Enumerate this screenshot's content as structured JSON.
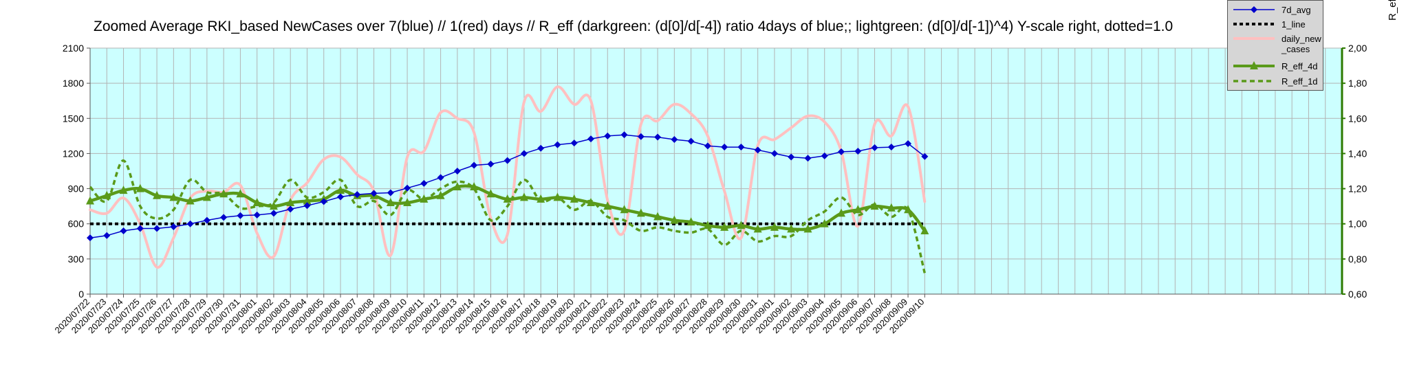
{
  "chart_data": {
    "type": "line",
    "title": "Zoomed Average RKI_based NewCases over 7(blue) // 1(red) days //  R_eff (darkgreen: (d[0]/d[-4]) ratio 4days of blue;; lightgreen: (d[0]/d[-1])^4) Y-scale right, dotted=1.0",
    "right_axis_label": "R_eff",
    "x": [
      "2020/07/22",
      "2020/07/23",
      "2020/07/24",
      "2020/07/25",
      "2020/07/26",
      "2020/07/27",
      "2020/07/28",
      "2020/07/29",
      "2020/07/30",
      "2020/07/31",
      "2020/08/01",
      "2020/08/02",
      "2020/08/03",
      "2020/08/04",
      "2020/08/05",
      "2020/08/06",
      "2020/08/07",
      "2020/08/08",
      "2020/08/09",
      "2020/08/10",
      "2020/08/11",
      "2020/08/12",
      "2020/08/13",
      "2020/08/14",
      "2020/08/15",
      "2020/08/16",
      "2020/08/17",
      "2020/08/18",
      "2020/08/19",
      "2020/08/20",
      "2020/08/21",
      "2020/08/22",
      "2020/08/23",
      "2020/08/24",
      "2020/08/25",
      "2020/08/26",
      "2020/08/27",
      "2020/08/28",
      "2020/08/29",
      "2020/08/30",
      "2020/08/31",
      "2020/09/01",
      "2020/09/02",
      "2020/09/03",
      "2020/09/04",
      "2020/09/05",
      "2020/09/06",
      "2020/09/07",
      "2020/09/08",
      "2020/09/09",
      "2020/09/10"
    ],
    "left_axis": {
      "ylim": [
        0,
        2100
      ],
      "ticks": [
        "0",
        "300",
        "600",
        "900",
        "1200",
        "1500",
        "1800",
        "2100"
      ]
    },
    "right_axis": {
      "ylim": [
        0.6,
        2.0
      ],
      "ticks": [
        "0,60",
        "0,80",
        "1,00",
        "1,20",
        "1,40",
        "1,60",
        "1,80",
        "2,00"
      ]
    },
    "x_slots": 75,
    "grid": true,
    "legend_position": "top-right",
    "series": [
      {
        "name": "7d_avg",
        "axis": "left",
        "color": "#0000cc",
        "marker": "diamond",
        "values": [
          480,
          500,
          540,
          560,
          560,
          575,
          600,
          630,
          655,
          670,
          675,
          690,
          725,
          755,
          790,
          830,
          850,
          860,
          865,
          905,
          945,
          995,
          1050,
          1100,
          1110,
          1140,
          1200,
          1245,
          1275,
          1290,
          1325,
          1350,
          1360,
          1345,
          1340,
          1320,
          1305,
          1265,
          1255,
          1255,
          1230,
          1200,
          1170,
          1160,
          1180,
          1215,
          1220,
          1250,
          1255,
          1285,
          1175
        ]
      },
      {
        "name": "1_line",
        "axis": "right",
        "color": "#000000",
        "dash": "dotted",
        "values": [
          1,
          1,
          1,
          1,
          1,
          1,
          1,
          1,
          1,
          1,
          1,
          1,
          1,
          1,
          1,
          1,
          1,
          1,
          1,
          1,
          1,
          1,
          1,
          1,
          1,
          1,
          1,
          1,
          1,
          1,
          1,
          1,
          1,
          1,
          1,
          1,
          1,
          1,
          1,
          1,
          1,
          1,
          1,
          1,
          1,
          1,
          1,
          1,
          1,
          1,
          1
        ]
      },
      {
        "name": "daily_new\n_cases",
        "axis": "left",
        "color": "#ffc0c0",
        "values": [
          720,
          690,
          820,
          600,
          230,
          480,
          820,
          880,
          870,
          930,
          520,
          320,
          800,
          950,
          1150,
          1170,
          1020,
          880,
          330,
          1170,
          1220,
          1550,
          1500,
          1380,
          650,
          510,
          1640,
          1560,
          1770,
          1620,
          1650,
          800,
          540,
          1450,
          1480,
          1620,
          1540,
          1350,
          880,
          480,
          1270,
          1320,
          1420,
          1520,
          1470,
          1220,
          580,
          1450,
          1350,
          1600,
          790
        ]
      },
      {
        "name": "R_eff_4d",
        "axis": "right",
        "color": "#5a9a1a",
        "marker": "triangle",
        "values": [
          1.13,
          1.16,
          1.19,
          1.2,
          1.16,
          1.15,
          1.13,
          1.15,
          1.17,
          1.17,
          1.12,
          1.1,
          1.12,
          1.13,
          1.14,
          1.19,
          1.16,
          1.16,
          1.12,
          1.12,
          1.14,
          1.16,
          1.21,
          1.21,
          1.17,
          1.14,
          1.15,
          1.14,
          1.15,
          1.14,
          1.12,
          1.1,
          1.08,
          1.06,
          1.04,
          1.02,
          1.01,
          0.99,
          0.98,
          0.99,
          0.97,
          0.98,
          0.97,
          0.97,
          1.0,
          1.06,
          1.08,
          1.1,
          1.09,
          1.08,
          0.96
        ]
      },
      {
        "name": "R_eff_1d",
        "axis": "right",
        "color": "#5a9a1a",
        "dash": "dashed",
        "values": [
          1.21,
          1.13,
          1.36,
          1.1,
          1.03,
          1.08,
          1.25,
          1.18,
          1.17,
          1.09,
          1.1,
          1.12,
          1.25,
          1.15,
          1.18,
          1.25,
          1.1,
          1.13,
          1.05,
          1.19,
          1.14,
          1.2,
          1.24,
          1.2,
          1.02,
          1.1,
          1.25,
          1.13,
          1.15,
          1.08,
          1.13,
          1.04,
          1.02,
          0.96,
          0.98,
          0.96,
          0.95,
          0.97,
          0.88,
          0.96,
          0.9,
          0.93,
          0.93,
          1.02,
          1.07,
          1.15,
          1.05,
          1.11,
          1.04,
          1.08,
          0.72
        ]
      }
    ]
  }
}
